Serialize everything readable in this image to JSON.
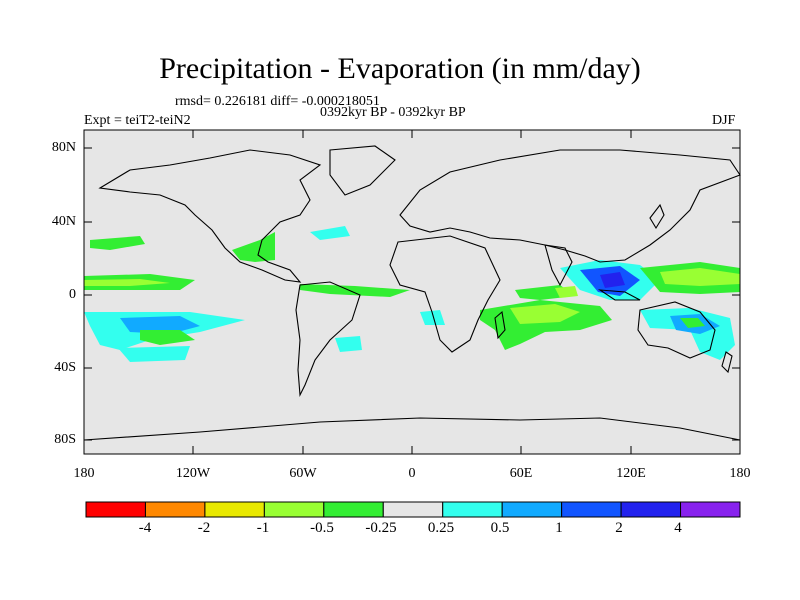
{
  "title": "Precipitation - Evaporation (in mm/day)",
  "stats": "rmsd= 0.226181 diff= -0.000218051",
  "period": "0392kyr BP - 0392kyr BP",
  "experiment": "Expt = teiT2-teiN2",
  "season": "DJF",
  "lat_labels": [
    "80N",
    "40N",
    "0",
    "40S",
    "80S"
  ],
  "lon_labels": [
    "180",
    "120W",
    "60W",
    "0",
    "60E",
    "120E",
    "180"
  ],
  "colorbar": {
    "labels": [
      "-4",
      "-2",
      "-1",
      "-0.5",
      "-0.25",
      "0.25",
      "0.5",
      "1",
      "2",
      "4"
    ],
    "colors": [
      "#ff0000",
      "#ff8800",
      "#e8e800",
      "#99ff33",
      "#33ee33",
      "#e6e6e6",
      "#33ffee",
      "#11aaff",
      "#1155ff",
      "#2222ee",
      "#8822ee"
    ]
  },
  "colors": {
    "land_background": "#e6e6e6",
    "coast": "#000000"
  }
}
